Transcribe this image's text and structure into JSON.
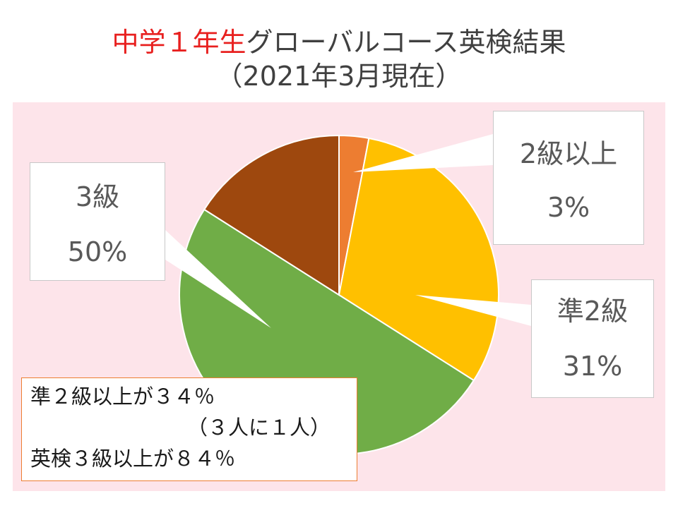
{
  "title": {
    "accent": "中学１年生",
    "main": "グローバルコース英検結果",
    "subtitle": "（2021年3月現在）"
  },
  "chart_data": {
    "type": "pie",
    "start_angle_deg": 0,
    "direction": "clockwise",
    "slices": [
      {
        "label": "2級以上",
        "value": 3,
        "percent_label": "3%",
        "color": "#ed7d31"
      },
      {
        "label": "準2級",
        "value": 31,
        "percent_label": "31%",
        "color": "#ffc000"
      },
      {
        "label": "3級",
        "value": 50,
        "percent_label": "50%",
        "color": "#70ad47"
      },
      {
        "label": "",
        "value": 16,
        "percent_label": "",
        "color": "#9e480e"
      }
    ],
    "background_color": "#fde4ea",
    "slice_border_color": "#ffffff"
  },
  "note": {
    "line1": "準２級以上が３４％",
    "line2": "（３人に１人）",
    "line3": "英検３級以上が８４％"
  }
}
